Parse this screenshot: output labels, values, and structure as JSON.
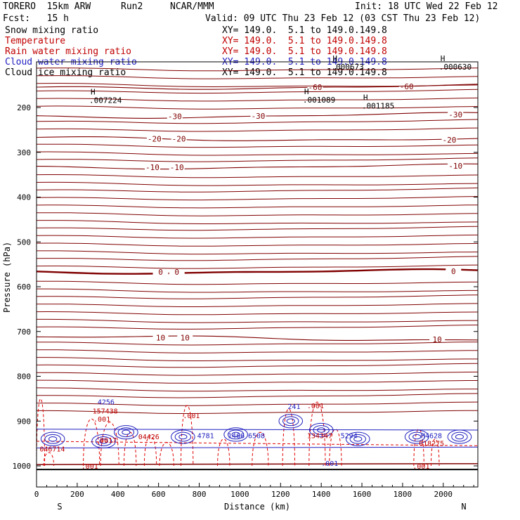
{
  "header": {
    "model": "TORERO  15km ARW",
    "run": "Run2",
    "org": "NCAR/MMM",
    "init": "Init: 18 UTC Wed 22 Feb 12",
    "fcst": "Fcst:   15 h",
    "valid": "Valid: 09 UTC Thu 23 Feb 12 (03 CST Thu 23 Feb 12)"
  },
  "legend": [
    {
      "label": "Snow mixing ratio",
      "xy": "XY= 149.0.  5.1 to 149.0.149.8",
      "color": "#000000",
      "xy_color": "#000000"
    },
    {
      "label": "Temperature",
      "xy": "XY= 149.0.  5.1 to 149.0.149.8",
      "color": "#c00000",
      "xy_color": "#c00000"
    },
    {
      "label": "Rain water mixing ratio",
      "xy": "XY= 149.0.  5.1 to 149.0.149.8",
      "color": "#c00000",
      "xy_color": "#c00000"
    },
    {
      "label": "Cloud water mixing ratio",
      "xy": "XY= 149.0.  5.1 to 149.0.149.8",
      "color": "#2020c0",
      "xy_color": "#2020c0"
    },
    {
      "label": "Cloud ice mixing ratio",
      "xy": "XY= 149.0.  5.1 to 149.0.149.8",
      "color": "#000000",
      "xy_color": "#000000"
    }
  ],
  "chart_data": {
    "type": "cross-section contour",
    "xlabel": "Distance (km)",
    "ylabel": "Pressure (hPa)",
    "x_ticks": [
      0,
      200,
      400,
      600,
      800,
      1000,
      1200,
      1400,
      1600,
      1800,
      2000
    ],
    "y_ticks": [
      200,
      300,
      400,
      500,
      600,
      700,
      800,
      900,
      1000
    ],
    "xlim": [
      0,
      2170
    ],
    "ylim": [
      1045,
      100
    ],
    "left_end": "S",
    "right_end": "N",
    "temperature_isotherms": [
      {
        "label": "-60",
        "pressure_left": 158,
        "pressure_right": 152,
        "positions_km": [
          1370,
          1820
        ]
      },
      {
        "label": "-30",
        "pressure_left": 222,
        "pressure_right": 215,
        "positions_km": [
          680,
          1090,
          2060
        ]
      },
      {
        "label": "-20",
        "pressure_left": 269,
        "pressure_right": 272,
        "positions_km": [
          580,
          700,
          2030
        ]
      },
      {
        "label": "-10",
        "pressure_left": 335,
        "pressure_right": 330,
        "positions_km": [
          570,
          690,
          2060
        ]
      },
      {
        "label": "0",
        "pressure_left": 568,
        "pressure_right": 565,
        "positions_km": [
          610,
          690,
          2050
        ]
      },
      {
        "label": "10",
        "pressure_left": 712,
        "pressure_right": 718,
        "positions_km": [
          610,
          730,
          1970
        ]
      }
    ],
    "highs": [
      {
        "label": ".007224",
        "x_km": 280,
        "p": 190
      },
      {
        "label": ".001089",
        "x_km": 1330,
        "p": 189
      },
      {
        "label": ".001185",
        "x_km": 1620,
        "p": 202
      },
      {
        "label": ".000630",
        "x_km": 2000,
        "p": 115
      },
      {
        "label": ".000673",
        "x_km": 1470,
        "p": 115
      }
    ],
    "low_level_labels": [
      {
        "label": "4256",
        "x_km": 300,
        "p": 863,
        "color": "#2020c0"
      },
      {
        "label": "157438",
        "x_km": 275,
        "p": 883,
        "color": "#c00000"
      },
      {
        "label": ".001",
        "x_km": 280,
        "p": 901,
        "color": "#c00000"
      },
      {
        "label": ".0017",
        "x_km": 290,
        "p": 948,
        "color": "#c00000"
      },
      {
        "label": "046714",
        "x_km": 15,
        "p": 968,
        "color": "#c00000"
      },
      {
        "label": "04426",
        "x_km": 500,
        "p": 940,
        "color": "#c00000"
      },
      {
        "label": ".001",
        "x_km": 720,
        "p": 893,
        "color": "#c00000"
      },
      {
        "label": "4781",
        "x_km": 790,
        "p": 938,
        "color": "#2020c0"
      },
      {
        "label": "1466",
        "x_km": 940,
        "p": 938,
        "color": "#2020c0"
      },
      {
        "label": "6508",
        "x_km": 1040,
        "p": 938,
        "color": "#2020c0"
      },
      {
        "label": "241",
        "x_km": 1235,
        "p": 873,
        "color": "#2020c0"
      },
      {
        "label": ".001",
        "x_km": 1330,
        "p": 871,
        "color": "#c00000"
      },
      {
        "label": "134347",
        "x_km": 1330,
        "p": 938,
        "color": "#c00000"
      },
      {
        "label": "5294",
        "x_km": 1495,
        "p": 938,
        "color": "#2020c0"
      },
      {
        "label": "H4628",
        "x_km": 1890,
        "p": 938,
        "color": "#2020c0"
      },
      {
        "label": "018275",
        "x_km": 1880,
        "p": 955,
        "color": "#c00000"
      },
      {
        "label": ".001",
        "x_km": 1400,
        "p": 1000,
        "color": "#2020c0"
      },
      {
        "label": ".001",
        "x_km": 1850,
        "p": 1006,
        "color": "#c00000"
      },
      {
        "label": ".001",
        "x_km": 220,
        "p": 1006,
        "color": "#c00000"
      }
    ],
    "surface_pressure_left": 1010,
    "surface_pressure_right": 1010
  },
  "colors": {
    "isotherm": "#800000",
    "rain": "#e00000",
    "cloud_water": "#2020c0",
    "axis": "#000000"
  }
}
